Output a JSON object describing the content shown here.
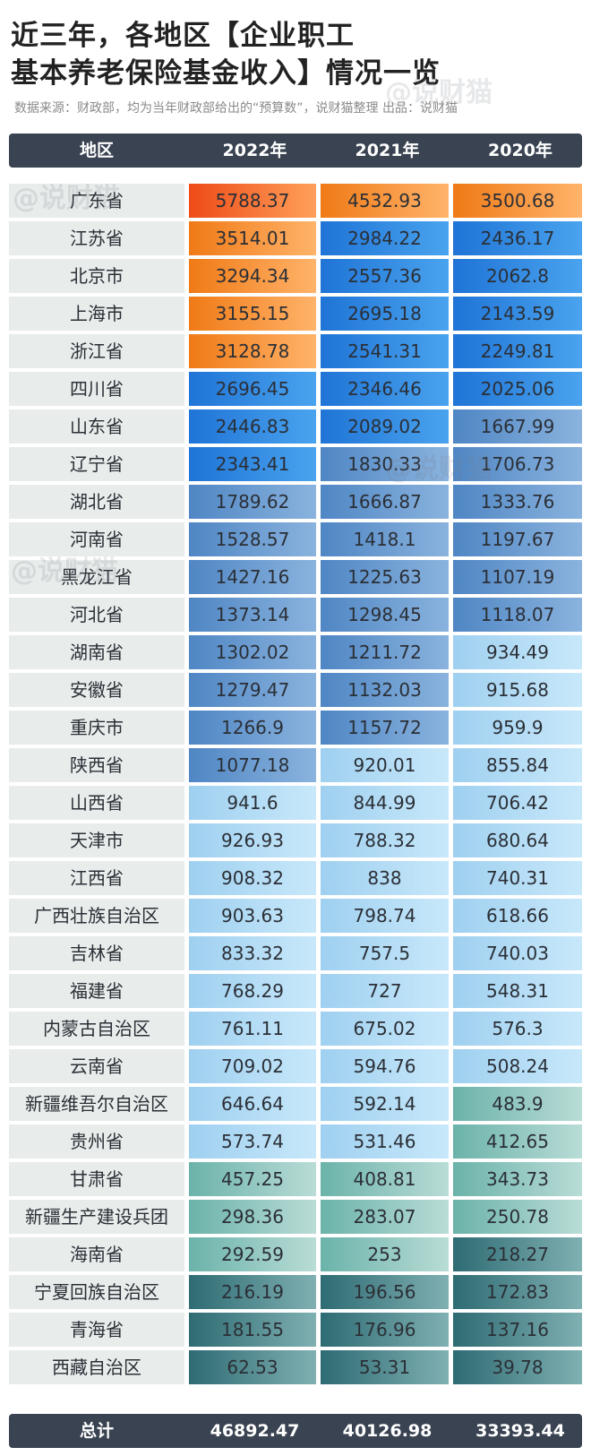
{
  "title_line1": "近三年，各地区【企业职工",
  "title_line2": "基本养老保险基金收入】情况一览",
  "source": "数据来源：财政部，均为当年财政部给出的“预算数”，说财猫整理  出品：说财猫",
  "watermark": "@说财猫",
  "header": {
    "region": "地区",
    "y2022": "2022年",
    "y2021": "2021年",
    "y2020": "2020年"
  },
  "colors": {
    "header_bg": "#3a4352",
    "name_bg": "#e8eceb"
  },
  "chart_data": {
    "type": "table",
    "columns": [
      "地区",
      "2022年",
      "2021年",
      "2020年"
    ],
    "rows": [
      [
        "广东省",
        "5788.37",
        "4532.93",
        "3500.68"
      ],
      [
        "江苏省",
        "3514.01",
        "2984.22",
        "2436.17"
      ],
      [
        "北京市",
        "3294.34",
        "2557.36",
        "2062.8"
      ],
      [
        "上海市",
        "3155.15",
        "2695.18",
        "2143.59"
      ],
      [
        "浙江省",
        "3128.78",
        "2541.31",
        "2249.81"
      ],
      [
        "四川省",
        "2696.45",
        "2346.46",
        "2025.06"
      ],
      [
        "山东省",
        "2446.83",
        "2089.02",
        "1667.99"
      ],
      [
        "辽宁省",
        "2343.41",
        "1830.33",
        "1706.73"
      ],
      [
        "湖北省",
        "1789.62",
        "1666.87",
        "1333.76"
      ],
      [
        "河南省",
        "1528.57",
        "1418.1",
        "1197.67"
      ],
      [
        "黑龙江省",
        "1427.16",
        "1225.63",
        "1107.19"
      ],
      [
        "河北省",
        "1373.14",
        "1298.45",
        "1118.07"
      ],
      [
        "湖南省",
        "1302.02",
        "1211.72",
        "934.49"
      ],
      [
        "安徽省",
        "1279.47",
        "1132.03",
        "915.68"
      ],
      [
        "重庆市",
        "1266.9",
        "1157.72",
        "959.9"
      ],
      [
        "陕西省",
        "1077.18",
        "920.01",
        "855.84"
      ],
      [
        "山西省",
        "941.6",
        "844.99",
        "706.42"
      ],
      [
        "天津市",
        "926.93",
        "788.32",
        "680.64"
      ],
      [
        "江西省",
        "908.32",
        "838",
        "740.31"
      ],
      [
        "广西壮族自治区",
        "903.63",
        "798.74",
        "618.66"
      ],
      [
        "吉林省",
        "833.32",
        "757.5",
        "740.03"
      ],
      [
        "福建省",
        "768.29",
        "727",
        "548.31"
      ],
      [
        "内蒙古自治区",
        "761.11",
        "675.02",
        "576.3"
      ],
      [
        "云南省",
        "709.02",
        "594.76",
        "508.24"
      ],
      [
        "新疆维吾尔自治区",
        "646.64",
        "592.14",
        "483.9"
      ],
      [
        "贵州省",
        "573.74",
        "531.46",
        "412.65"
      ],
      [
        "甘肃省",
        "457.25",
        "408.81",
        "343.73"
      ],
      [
        "新疆生产建设兵团",
        "298.36",
        "283.07",
        "250.78"
      ],
      [
        "海南省",
        "292.59",
        "253",
        "218.27"
      ],
      [
        "宁夏回族自治区",
        "216.19",
        "196.56",
        "172.83"
      ],
      [
        "青海省",
        "181.55",
        "176.96",
        "137.16"
      ],
      [
        "西藏自治区",
        "62.53",
        "53.31",
        "39.78"
      ]
    ],
    "total": [
      "总计",
      "46892.47",
      "40126.98",
      "33393.44"
    ]
  }
}
